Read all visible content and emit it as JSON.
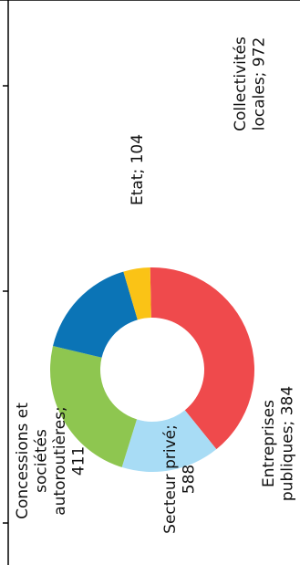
{
  "chart_data": {
    "type": "pie",
    "donut": true,
    "orientation": "rotated-90-ccw",
    "title": "",
    "colors": {
      "collectivites": "#EF4A4C",
      "entreprises": "#A8DCF5",
      "secteur_prive": "#8EC650",
      "concessions": "#0B74B6",
      "etat": "#FAC316"
    },
    "slices": [
      {
        "key": "collectivites",
        "label": "Collectivités locales; 972",
        "lines": [
          "Collectivités",
          "locales; 972"
        ],
        "value": 972
      },
      {
        "key": "entreprises",
        "label": "Entreprises publiques; 384",
        "lines": [
          "Entreprises",
          "publiques; 384"
        ],
        "value": 384
      },
      {
        "key": "secteur_prive",
        "label": "Secteur privé; 588",
        "lines": [
          "Secteur privé;",
          "588"
        ],
        "value": 588
      },
      {
        "key": "concessions",
        "label": "Concessions et sociétés autoroutières; 411",
        "lines": [
          "Concessions et",
          "sociétés",
          "autoroutières;",
          "411"
        ],
        "value": 411
      },
      {
        "key": "etat",
        "label": "Etat; 104",
        "lines": [
          "Etat; 104"
        ],
        "value": 104
      }
    ]
  }
}
